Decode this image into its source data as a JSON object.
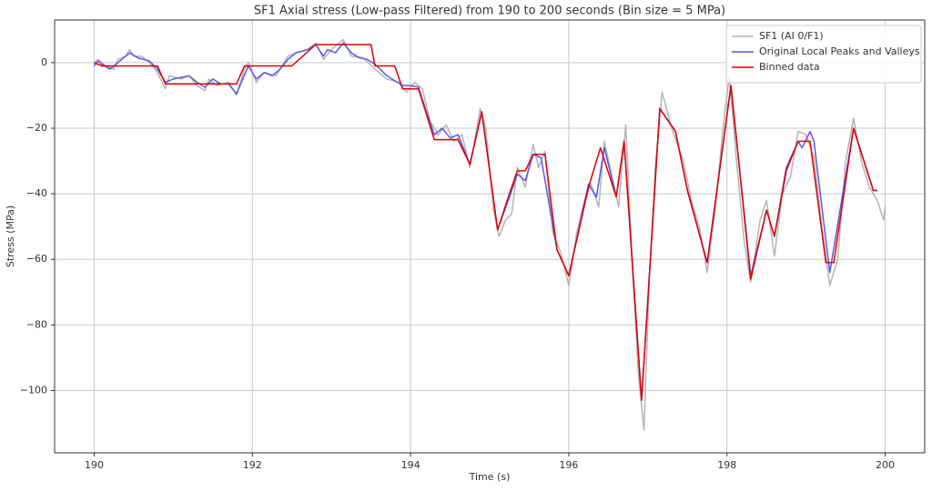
{
  "chart_data": {
    "type": "line",
    "title": "SF1 Axial stress (Low-pass Filtered) from 190 to 200 seconds (Bin size = 5 MPa)",
    "xlabel": "Time (s)",
    "ylabel": "Stress (MPa)",
    "xlim": [
      189.5,
      200.5
    ],
    "ylim": [
      -119,
      13
    ],
    "xticks": [
      190,
      192,
      194,
      196,
      198,
      200
    ],
    "yticks": [
      0,
      {
        "value": -20,
        "label": "−20"
      },
      {
        "value": -40,
        "label": "−40"
      },
      {
        "value": -60,
        "label": "−60"
      },
      {
        "value": -80,
        "label": "−80"
      },
      {
        "value": -100,
        "label": "−100"
      }
    ],
    "grid": true,
    "legend": "upper right",
    "series": [
      {
        "name": "SF1 (AI 0/F1)",
        "color": "#b4b4b4",
        "x": [
          190.0,
          190.05,
          190.15,
          190.25,
          190.3,
          190.4,
          190.45,
          190.5,
          190.6,
          190.7,
          190.8,
          190.9,
          190.95,
          191.1,
          191.2,
          191.3,
          191.4,
          191.45,
          191.55,
          191.7,
          191.8,
          191.9,
          191.95,
          192.05,
          192.15,
          192.3,
          192.45,
          192.55,
          192.7,
          192.8,
          192.9,
          193.0,
          193.15,
          193.25,
          193.4,
          193.55,
          193.7,
          193.85,
          193.95,
          194.05,
          194.15,
          194.25,
          194.35,
          194.45,
          194.55,
          194.65,
          194.75,
          194.88,
          194.95,
          195.05,
          195.12,
          195.2,
          195.28,
          195.35,
          195.45,
          195.55,
          195.62,
          195.7,
          195.8,
          195.9,
          196.0,
          196.1,
          196.2,
          196.28,
          196.38,
          196.45,
          196.55,
          196.63,
          196.72,
          196.8,
          196.88,
          196.95,
          197.02,
          197.1,
          197.18,
          197.3,
          197.45,
          197.55,
          197.65,
          197.75,
          197.85,
          197.95,
          198.03,
          198.12,
          198.22,
          198.3,
          198.42,
          198.5,
          198.6,
          198.7,
          198.8,
          198.9,
          199.0,
          199.1,
          199.2,
          199.3,
          199.4,
          199.5,
          199.6,
          199.7,
          199.8,
          199.9,
          199.98,
          200.0
        ],
        "values": [
          0,
          1,
          -1,
          -2,
          1,
          2,
          4,
          2,
          2,
          0,
          -3,
          -8,
          -4,
          -5,
          -4,
          -7,
          -8.5,
          -5,
          -7,
          -6,
          -10,
          -2,
          0,
          -6,
          -3,
          -4,
          2,
          3,
          4,
          6,
          1,
          4,
          7,
          2,
          1.5,
          -2,
          -5,
          -6,
          -9,
          -6,
          -8,
          -18,
          -22,
          -19,
          -24,
          -22,
          -32,
          -14,
          -20,
          -45,
          -53,
          -48,
          -46,
          -32,
          -38,
          -25,
          -32,
          -27,
          -52,
          -58,
          -68,
          -52,
          -42,
          -37,
          -44,
          -24,
          -35,
          -44,
          -19,
          -60,
          -95,
          -112,
          -65,
          -30,
          -9,
          -20,
          -30,
          -42,
          -50,
          -64,
          -45,
          -20,
          -4,
          -30,
          -55,
          -67,
          -48,
          -42,
          -59,
          -40,
          -35,
          -21,
          -22,
          -29,
          -50,
          -68,
          -60,
          -30,
          -17,
          -30,
          -38,
          -42,
          -48,
          -44
        ]
      },
      {
        "name": "Original Local Peaks and Valleys",
        "color": "#5a5ae6",
        "x": [
          190.0,
          190.05,
          190.1,
          190.2,
          190.3,
          190.35,
          190.45,
          190.55,
          190.7,
          190.8,
          190.9,
          191.0,
          191.1,
          191.2,
          191.3,
          191.4,
          191.5,
          191.6,
          191.7,
          191.8,
          191.95,
          192.05,
          192.15,
          192.25,
          192.35,
          192.45,
          192.55,
          192.7,
          192.8,
          192.9,
          192.95,
          193.05,
          193.15,
          193.25,
          193.35,
          193.45,
          193.55,
          193.7,
          193.8,
          193.9,
          194.0,
          194.1,
          194.2,
          194.3,
          194.4,
          194.5,
          194.6,
          194.75,
          194.9,
          195.1,
          195.25,
          195.35,
          195.45,
          195.55,
          195.65,
          195.85,
          196.0,
          196.25,
          196.35,
          196.45,
          196.6,
          196.7,
          196.92,
          197.15,
          197.35,
          197.5,
          197.75,
          198.05,
          198.3,
          198.5,
          198.6,
          198.75,
          198.9,
          198.95,
          199.05,
          199.1,
          199.3,
          199.6,
          199.85,
          199.9
        ],
        "values": [
          -1,
          0.5,
          -0.5,
          -2,
          0,
          1,
          3,
          1.5,
          0.5,
          -2,
          -6,
          -5,
          -4.5,
          -4,
          -6,
          -7.5,
          -5,
          -6.5,
          -6.5,
          -9.5,
          -1,
          -5,
          -3,
          -4,
          -2,
          1,
          3,
          4,
          5.5,
          2,
          4,
          3,
          6,
          3,
          1.5,
          1,
          -0.5,
          -4,
          -5.5,
          -7,
          -7,
          -7.5,
          -15,
          -22,
          -20,
          -23,
          -22,
          -31,
          -15,
          -51,
          -41,
          -34,
          -36,
          -28,
          -29,
          -57,
          -65,
          -37,
          -41,
          -26,
          -41,
          -24,
          -103,
          -14,
          -21,
          -39,
          -61,
          -7,
          -65,
          -45,
          -53,
          -32,
          -24,
          -26,
          -21,
          -24,
          -64,
          -20,
          -39,
          -39
        ]
      },
      {
        "name": "Binned data",
        "color": "#e00000",
        "x": [
          190.0,
          190.1,
          190.8,
          190.9,
          191.8,
          191.9,
          192.5,
          192.8,
          193.5,
          193.55,
          193.8,
          193.9,
          194.1,
          194.3,
          194.6,
          194.75,
          194.9,
          195.1,
          195.25,
          195.35,
          195.45,
          195.55,
          195.7,
          195.85,
          196.0,
          196.25,
          196.4,
          196.6,
          196.7,
          196.92,
          197.15,
          197.35,
          197.5,
          197.75,
          198.05,
          198.3,
          198.5,
          198.6,
          198.75,
          198.9,
          199.05,
          199.25,
          199.35,
          199.6,
          199.85,
          199.9
        ],
        "values": [
          0,
          -1,
          -1,
          -6.5,
          -6.5,
          -1,
          -1,
          5.5,
          5.5,
          -1,
          -1,
          -8,
          -8,
          -23.5,
          -23.5,
          -31,
          -15,
          -51,
          -40,
          -33,
          -33,
          -28,
          -28,
          -57,
          -65,
          -38,
          -26,
          -41,
          -24,
          -103,
          -14,
          -21,
          -39,
          -61,
          -7,
          -66,
          -45,
          -53,
          -33,
          -24,
          -24,
          -61,
          -61,
          -20,
          -39,
          -39
        ]
      }
    ]
  }
}
